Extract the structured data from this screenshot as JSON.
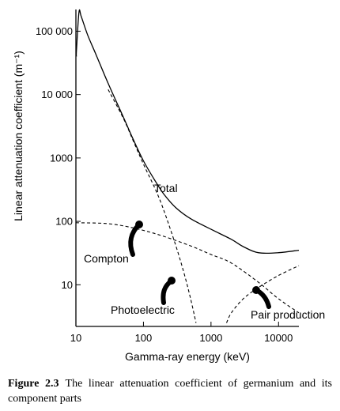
{
  "chart_data": {
    "type": "line",
    "title": "",
    "xlabel": "Gamma-ray energy (keV)",
    "ylabel": "Linear attenuation coefficient (m⁻¹)",
    "x_scale": "log",
    "y_scale": "log",
    "xlim": [
      10,
      20000
    ],
    "ylim": [
      2.2,
      220000
    ],
    "x_ticks": [
      {
        "value": 10,
        "label": "10"
      },
      {
        "value": 100,
        "label": "100"
      },
      {
        "value": 1000,
        "label": "1000"
      },
      {
        "value": 10000,
        "label": "10000"
      }
    ],
    "y_ticks": [
      {
        "value": 10,
        "label": "10"
      },
      {
        "value": 100,
        "label": "100"
      },
      {
        "value": 1000,
        "label": "1000"
      },
      {
        "value": 10000,
        "label": "10 000"
      },
      {
        "value": 100000,
        "label": "100 000"
      }
    ],
    "series": [
      {
        "name": "Total",
        "style": "solid",
        "points": [
          [
            10.2,
            40000
          ],
          [
            10.2,
            50000
          ],
          [
            11.1,
            200000
          ],
          [
            12,
            170000
          ],
          [
            15,
            86000
          ],
          [
            20,
            42000
          ],
          [
            30,
            15000
          ],
          [
            50,
            4500
          ],
          [
            70,
            2000
          ],
          [
            100,
            900
          ],
          [
            150,
            430
          ],
          [
            200,
            270
          ],
          [
            300,
            165
          ],
          [
            500,
            110
          ],
          [
            1000,
            75
          ],
          [
            2000,
            52
          ],
          [
            3000,
            40
          ],
          [
            5000,
            32
          ],
          [
            10000,
            32
          ],
          [
            20000,
            35
          ]
        ]
      },
      {
        "name": "Photoelectric",
        "style": "dashed",
        "points": [
          [
            30,
            12000
          ],
          [
            50,
            4300
          ],
          [
            70,
            1900
          ],
          [
            100,
            800
          ],
          [
            150,
            320
          ],
          [
            200,
            150
          ],
          [
            300,
            42
          ],
          [
            400,
            15
          ],
          [
            500,
            6
          ],
          [
            600,
            2.5
          ]
        ]
      },
      {
        "name": "Compton",
        "style": "dashed",
        "points": [
          [
            10,
            95
          ],
          [
            20,
            94
          ],
          [
            30,
            92
          ],
          [
            50,
            85
          ],
          [
            100,
            72
          ],
          [
            200,
            58
          ],
          [
            500,
            41
          ],
          [
            1000,
            30
          ],
          [
            2000,
            22
          ],
          [
            5000,
            11
          ],
          [
            10000,
            6
          ],
          [
            20000,
            3.6
          ]
        ]
      },
      {
        "name": "Pair production",
        "style": "dashed",
        "points": [
          [
            1700,
            2.5
          ],
          [
            2000,
            3.6
          ],
          [
            3000,
            6
          ],
          [
            5000,
            9
          ],
          [
            10000,
            14
          ],
          [
            20000,
            20
          ]
        ]
      }
    ],
    "annotations": [
      {
        "text": "Total",
        "x": 270,
        "y": 550,
        "arrow": false
      },
      {
        "text": "Compton",
        "x": 40,
        "y": 28,
        "arrow": true
      },
      {
        "text": "Photoelectric",
        "x": 200,
        "y": 3.2,
        "arrow": true
      },
      {
        "text": "Pair production",
        "x": 10000,
        "y": 3.2,
        "arrow": true
      }
    ]
  },
  "caption": {
    "label": "Figure 2.3",
    "text": "The linear attenuation coefficient of germanium and its component parts"
  }
}
